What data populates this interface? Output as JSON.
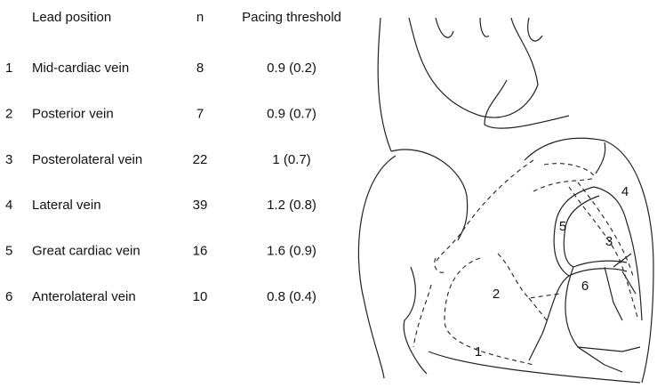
{
  "table": {
    "header": [
      "Lead position",
      "n",
      "Pacing threshold"
    ],
    "rows": [
      [
        "1",
        "Mid-cardiac vein",
        "8",
        "0.9 (0.2)"
      ],
      [
        "2",
        "Posterior vein",
        "7",
        "0.9 (0.7)"
      ],
      [
        "3",
        "Posterolateral vein",
        "22",
        "1 (0.7)"
      ],
      [
        "4",
        "Lateral vein",
        "39",
        "1.2 (0.8)"
      ],
      [
        "5",
        "Great cardiac vein",
        "16",
        "1.6 (0.9)"
      ],
      [
        "6",
        "Anterolateral vein",
        "10",
        "0.8 (0.4)"
      ]
    ]
  },
  "diagram": {
    "labels": [
      "1",
      "2",
      "3",
      "4",
      "5",
      "6"
    ]
  }
}
